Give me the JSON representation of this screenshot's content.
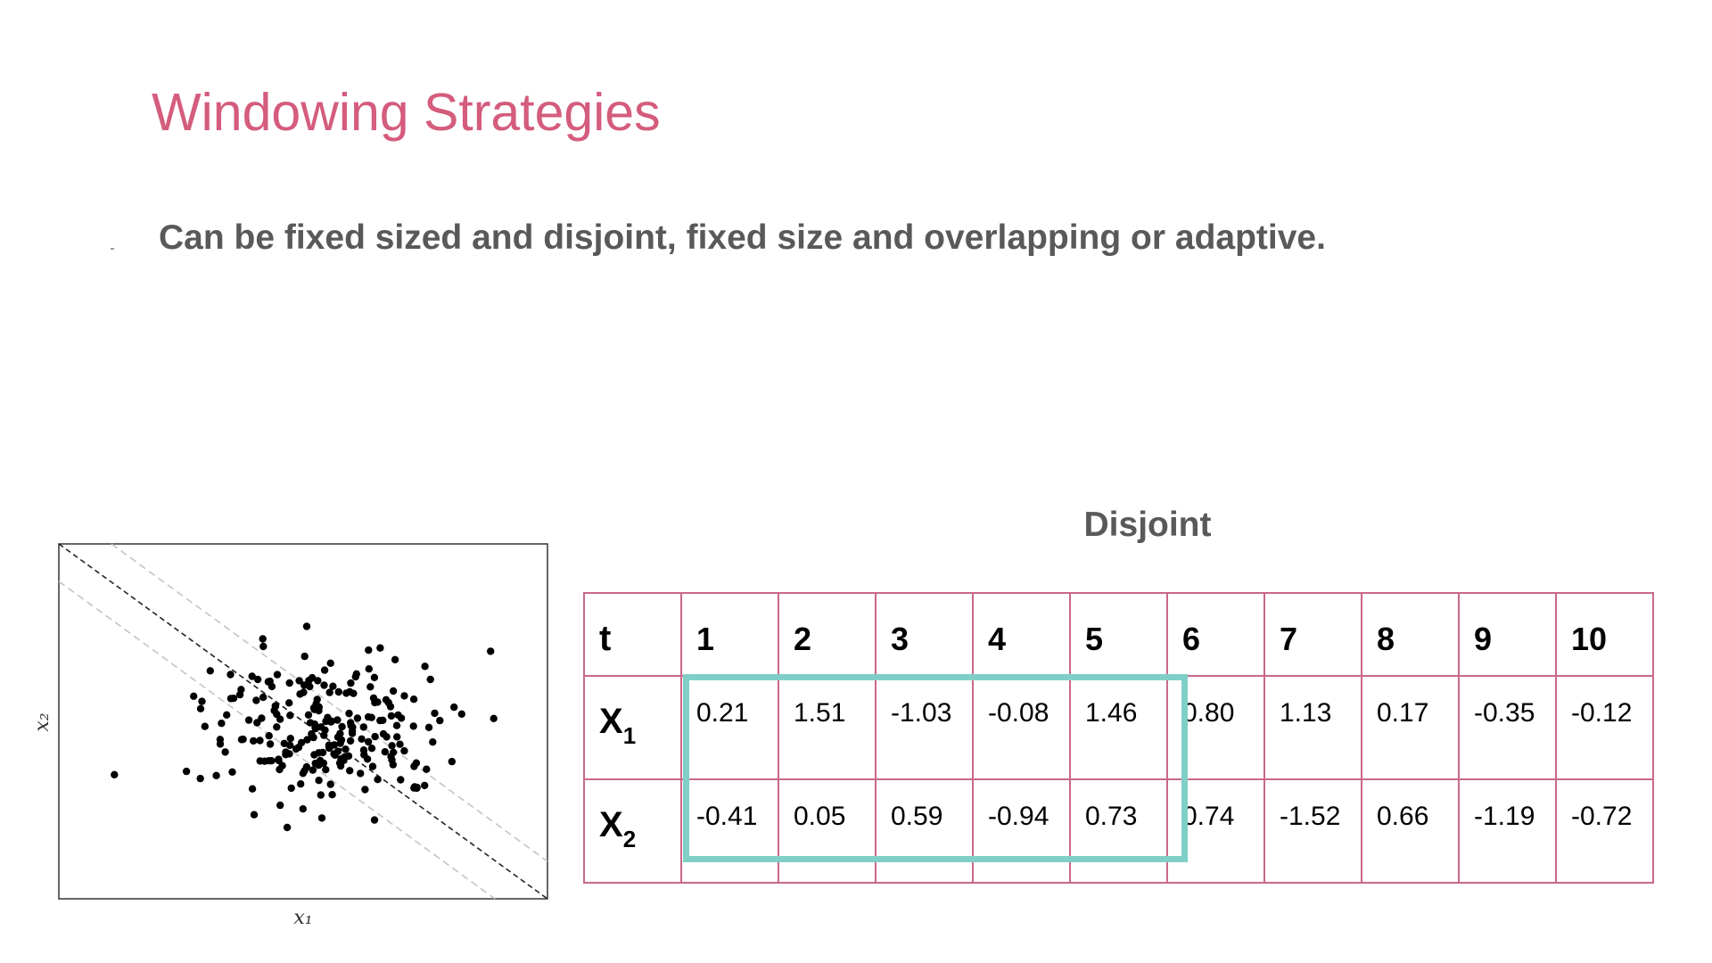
{
  "slide": {
    "title": "Windowing Strategies",
    "bullet": "Can be fixed sized and disjoint, fixed size and overlapping or adaptive.",
    "section_heading": "Disjoint"
  },
  "plot": {
    "xlabel": "x₁",
    "ylabel": "x₂"
  },
  "table": {
    "header_label": "t",
    "x1_label": "X",
    "x1_sub": "1",
    "x2_label": "X",
    "x2_sub": "2",
    "t": [
      "1",
      "2",
      "3",
      "4",
      "5",
      "6",
      "7",
      "8",
      "9",
      "10"
    ],
    "x1": [
      "0.21",
      "1.51",
      "-1.03",
      "-0.08",
      "1.46",
      "0.80",
      "1.13",
      "0.17",
      "-0.35",
      "-0.12"
    ],
    "x2": [
      "-0.41",
      "0.05",
      "0.59",
      "-0.94",
      "0.73",
      "0.74",
      "-1.52",
      "0.66",
      "-1.19",
      "-0.72"
    ],
    "highlight_window": {
      "start_index": 0,
      "end_index": 4,
      "color": "#7fcfc7"
    },
    "border_color": "#c9688a"
  },
  "colors": {
    "title": "#d45c7c",
    "body_text": "#595959"
  }
}
